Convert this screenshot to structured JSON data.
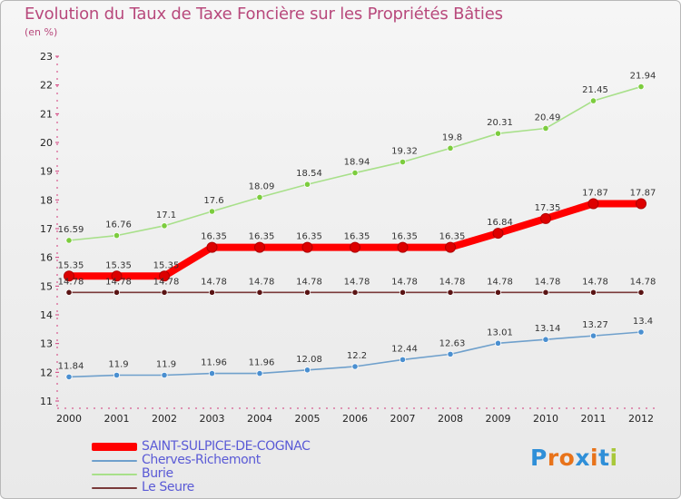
{
  "chart_data": {
    "type": "line",
    "title": "Evolution du Taux de Taxe Foncière sur les Propriétés Bâties",
    "ylabel": "(en %)",
    "xlabel": "",
    "x": [
      "2000",
      "2001",
      "2002",
      "2003",
      "2004",
      "2005",
      "2006",
      "2007",
      "2008",
      "2009",
      "2010",
      "2011",
      "2012"
    ],
    "ylim": [
      11,
      23
    ],
    "yticks": [
      "11",
      "12",
      "13",
      "14",
      "15",
      "16",
      "17",
      "18",
      "19",
      "20",
      "21",
      "22",
      "23"
    ],
    "grid": false,
    "legend_position": "bottom-left",
    "series": [
      {
        "name": "SAINT-SULPICE-DE-COGNAC",
        "color": "#ff0000",
        "marker_color": "#dd0000",
        "highlight": true,
        "values": [
          15.35,
          15.35,
          15.35,
          16.35,
          16.35,
          16.35,
          16.35,
          16.35,
          16.35,
          16.84,
          17.35,
          17.87,
          17.87
        ],
        "labels": [
          "15.35",
          "15.35",
          "15.35",
          "16.35",
          "16.35",
          "16.35",
          "16.35",
          "16.35",
          "16.35",
          "16.84",
          "17.35",
          "17.87",
          "17.87"
        ]
      },
      {
        "name": "Cherves-Richemont",
        "color": "#6fa0cc",
        "marker_color": "#4a8fd0",
        "highlight": false,
        "values": [
          11.84,
          11.9,
          11.9,
          11.96,
          11.96,
          12.08,
          12.2,
          12.44,
          12.63,
          13.01,
          13.14,
          13.27,
          13.4
        ],
        "labels": [
          "11.84",
          "11.9",
          "11.9",
          "11.96",
          "11.96",
          "12.08",
          "12.2",
          "12.44",
          "12.63",
          "13.01",
          "13.14",
          "13.27",
          "13.4"
        ]
      },
      {
        "name": "Burie",
        "color": "#a8e08a",
        "marker_color": "#7ccc3e",
        "highlight": false,
        "values": [
          16.59,
          16.76,
          17.1,
          17.6,
          18.09,
          18.54,
          18.94,
          19.32,
          19.8,
          20.31,
          20.49,
          21.45,
          21.94
        ],
        "labels": [
          "16.59",
          "16.76",
          "17.1",
          "17.6",
          "18.09",
          "18.54",
          "18.94",
          "19.32",
          "19.8",
          "20.31",
          "20.49",
          "21.45",
          "21.94"
        ]
      },
      {
        "name": "Le Seure",
        "color": "#7a3a3a",
        "marker_color": "#5a1414",
        "highlight": false,
        "values": [
          14.78,
          14.78,
          14.78,
          14.78,
          14.78,
          14.78,
          14.78,
          14.78,
          14.78,
          14.78,
          14.78,
          14.78,
          14.78
        ],
        "labels": [
          "14.78",
          "14.78",
          "14.78",
          "14.78",
          "14.78",
          "14.78",
          "14.78",
          "14.78",
          "14.78",
          "14.78",
          "14.78",
          "14.78",
          "14.78"
        ]
      }
    ]
  },
  "logo": {
    "letters": [
      "P",
      "r",
      "o",
      "x",
      "i",
      "t",
      "i"
    ],
    "colors": [
      "#2f8fd8",
      "#e8731a",
      "#e8731a",
      "#2f8fd8",
      "#e8731a",
      "#2f8fd8",
      "#a8c83a"
    ]
  }
}
